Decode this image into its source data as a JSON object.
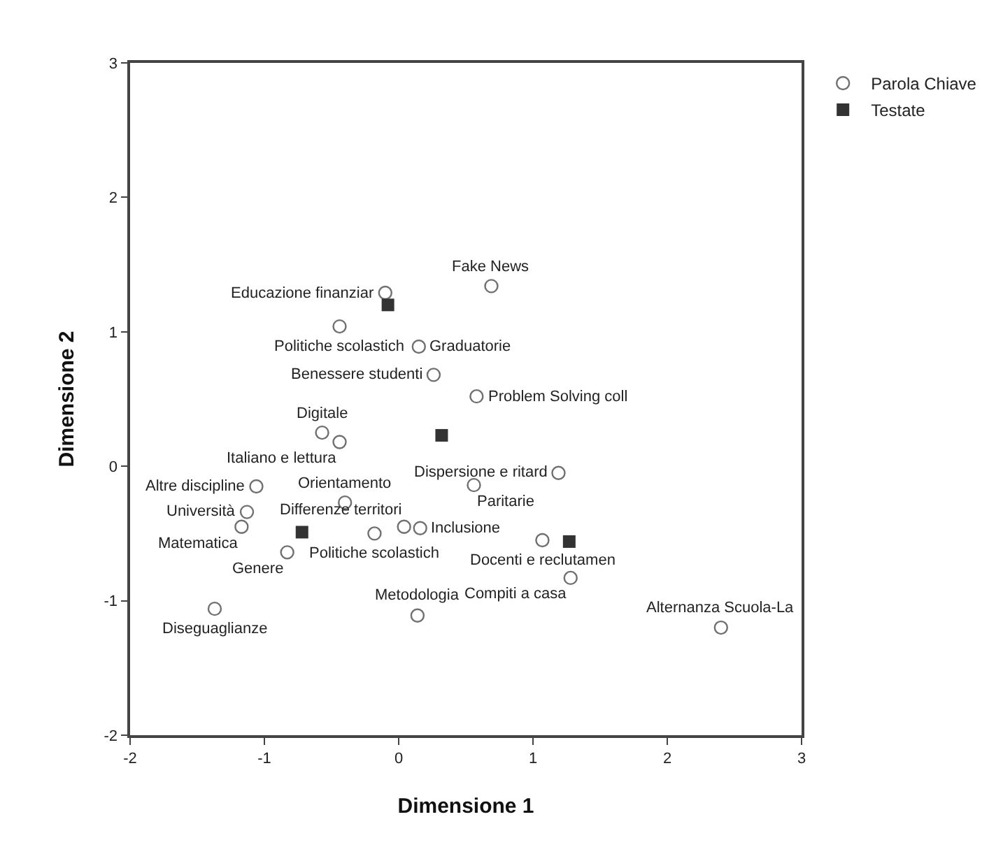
{
  "chart_data": {
    "type": "scatter",
    "xlabel": "Dimensione 1",
    "ylabel": "Dimensione 2",
    "xlim": [
      -2,
      3
    ],
    "ylim": [
      -2,
      3
    ],
    "xticks": [
      -2,
      -1,
      0,
      1,
      2,
      3
    ],
    "yticks": [
      -2,
      -1,
      0,
      1,
      2,
      3
    ],
    "grid": false,
    "legend": "top right",
    "series": [
      {
        "name": "Parola Chiave",
        "color": "#707070",
        "marker": "circle",
        "x": [
          0.69,
          -0.1,
          -0.44,
          0.15,
          0.26,
          0.58,
          -0.57,
          -0.44,
          1.19,
          0.56,
          -1.06,
          -1.13,
          -1.17,
          -0.4,
          -0.18,
          0.04,
          0.16,
          -0.83,
          -1.37,
          0.14,
          1.07,
          1.28,
          2.4
        ],
        "values": [
          1.34,
          1.29,
          1.04,
          0.89,
          0.68,
          0.52,
          0.25,
          0.18,
          -0.05,
          -0.14,
          -0.15,
          -0.34,
          -0.45,
          -0.27,
          -0.5,
          -0.45,
          -0.46,
          -0.64,
          -1.06,
          -1.11,
          -0.55,
          -0.83,
          -1.2
        ]
      },
      {
        "name": "Testate",
        "color": "#333333",
        "marker": "square",
        "x": [
          -0.08,
          0.32,
          -0.72,
          1.27
        ],
        "values": [
          1.2,
          0.23,
          -0.49,
          -0.56
        ]
      }
    ],
    "annotations": [
      {
        "text": "Fake News",
        "x": 0.69,
        "y": 1.34
      },
      {
        "text": "Educazione finanziar",
        "x": -0.1,
        "y": 1.29
      },
      {
        "text": "Politiche scolastich",
        "x": -0.44,
        "y": 1.04
      },
      {
        "text": "Graduatorie",
        "x": 0.15,
        "y": 0.89
      },
      {
        "text": "Benessere studenti",
        "x": 0.26,
        "y": 0.68
      },
      {
        "text": "Problem Solving coll",
        "x": 0.58,
        "y": 0.52
      },
      {
        "text": "Digitale",
        "x": -0.57,
        "y": 0.25
      },
      {
        "text": "Italiano e lettura",
        "x": -0.44,
        "y": 0.18
      },
      {
        "text": "Dispersione e ritard",
        "x": 1.19,
        "y": -0.05
      },
      {
        "text": "Paritarie",
        "x": 0.56,
        "y": -0.14
      },
      {
        "text": "Altre discipline",
        "x": -1.06,
        "y": -0.15
      },
      {
        "text": "Università",
        "x": -1.13,
        "y": -0.34
      },
      {
        "text": "Matematica",
        "x": -1.17,
        "y": -0.45
      },
      {
        "text": "Orientamento",
        "x": -0.4,
        "y": -0.27
      },
      {
        "text": "Politiche scolastich",
        "x": -0.18,
        "y": -0.5
      },
      {
        "text": "Differenze territori",
        "x": 0.04,
        "y": -0.45
      },
      {
        "text": "Inclusione",
        "x": 0.16,
        "y": -0.46
      },
      {
        "text": "Genere",
        "x": -0.83,
        "y": -0.64
      },
      {
        "text": "Diseguaglianze",
        "x": -1.37,
        "y": -1.06
      },
      {
        "text": "Metodologia",
        "x": 0.14,
        "y": -1.11
      },
      {
        "text": "Docenti e reclutamen",
        "x": 1.07,
        "y": -0.55
      },
      {
        "text": "Compiti a casa",
        "x": 1.28,
        "y": -0.83
      },
      {
        "text": "Alternanza Scuola-La",
        "x": 2.4,
        "y": -1.2
      }
    ]
  }
}
